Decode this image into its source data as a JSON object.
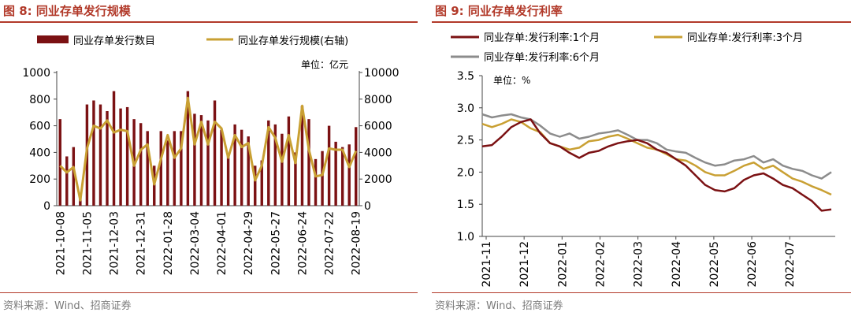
{
  "left": {
    "title": "图 8:  同业存单发行规模",
    "source": "资料来源：Wind、招商证券",
    "chart_data": {
      "type": "bar+line",
      "title": "同业存单发行规模",
      "unit_label": "单位：亿元",
      "left_axis": {
        "min": 0,
        "max": 1000,
        "ticks": [
          "0",
          "200",
          "400",
          "600",
          "800",
          "1000"
        ]
      },
      "right_axis": {
        "min": 0,
        "max": 10000,
        "ticks": [
          "0",
          "2000",
          "4000",
          "6000",
          "8000",
          "10000"
        ]
      },
      "x_tick_labels": [
        "2021-10-08",
        "2021-11-05",
        "2021-12-03",
        "2021-12-31",
        "2022-01-28",
        "2022-03-04",
        "2022-04-01",
        "2022-04-29",
        "2022-05-27",
        "2022-06-24",
        "2022-07-22",
        "2022-08-19"
      ],
      "x_tick_index": [
        0,
        4,
        8,
        12,
        16,
        20,
        24,
        28,
        32,
        36,
        40,
        44
      ],
      "series": [
        {
          "name": "同业存单发行数目",
          "axis": "left",
          "color": "#7b1113",
          "values": [
            650,
            370,
            440,
            80,
            760,
            790,
            760,
            710,
            860,
            730,
            740,
            650,
            620,
            560,
            300,
            560,
            490,
            560,
            560,
            860,
            690,
            680,
            640,
            790,
            570,
            380,
            610,
            570,
            520,
            300,
            340,
            640,
            610,
            540,
            670,
            400,
            750,
            650,
            350,
            410,
            600,
            480,
            440,
            460,
            590
          ]
        },
        {
          "name": "同业存单发行规模(右轴)",
          "axis": "right",
          "color": "#c9a033",
          "values": [
            3000,
            2500,
            2900,
            400,
            4300,
            6000,
            5800,
            6400,
            5500,
            5700,
            5600,
            3000,
            4200,
            4600,
            1600,
            3500,
            5300,
            3600,
            4300,
            8100,
            4600,
            6300,
            4600,
            6300,
            5800,
            3600,
            5300,
            4400,
            4700,
            1900,
            3000,
            5900,
            5100,
            3300,
            5300,
            3200,
            7500,
            4200,
            2200,
            2300,
            4300,
            4200,
            4200,
            2900,
            4100
          ]
        }
      ]
    }
  },
  "right": {
    "title": "图 9:  同业存单发行利率",
    "source": "资料来源：Wind、招商证券",
    "chart_data": {
      "type": "line",
      "title": "同业存单发行利率",
      "unit_label": "单位：%",
      "y_axis": {
        "min": 1.0,
        "max": 3.5,
        "ticks": [
          "1.0",
          "1.5",
          "2.0",
          "2.5",
          "3.0",
          "3.5"
        ]
      },
      "x_tick_labels": [
        "2021-11",
        "2021-12",
        "2022-01",
        "2022-02",
        "2022-03",
        "2022-04",
        "2022-05",
        "2022-06",
        "2022-07"
      ],
      "series": [
        {
          "name": "同业存单:发行利率:1个月",
          "color": "#7b1113",
          "values": [
            2.4,
            2.42,
            2.55,
            2.7,
            2.78,
            2.82,
            2.6,
            2.45,
            2.4,
            2.3,
            2.22,
            2.3,
            2.33,
            2.4,
            2.45,
            2.48,
            2.5,
            2.45,
            2.35,
            2.3,
            2.2,
            2.1,
            1.95,
            1.8,
            1.72,
            1.7,
            1.75,
            1.88,
            1.95,
            1.98,
            1.9,
            1.8,
            1.75,
            1.65,
            1.55,
            1.4,
            1.42
          ]
        },
        {
          "name": "同业存单:发行利率:3个月",
          "color": "#c9a033",
          "values": [
            2.75,
            2.7,
            2.75,
            2.82,
            2.78,
            2.68,
            2.62,
            2.45,
            2.4,
            2.35,
            2.38,
            2.48,
            2.5,
            2.55,
            2.58,
            2.52,
            2.45,
            2.38,
            2.35,
            2.28,
            2.2,
            2.18,
            2.1,
            2.0,
            1.95,
            1.95,
            2.02,
            2.1,
            2.15,
            2.05,
            2.1,
            2.0,
            1.9,
            1.85,
            1.78,
            1.72,
            1.65
          ]
        },
        {
          "name": "同业存单:发行利率:6个月",
          "color": "#8c8c8c",
          "values": [
            2.9,
            2.85,
            2.88,
            2.9,
            2.85,
            2.82,
            2.72,
            2.6,
            2.55,
            2.6,
            2.52,
            2.55,
            2.6,
            2.62,
            2.65,
            2.58,
            2.5,
            2.5,
            2.45,
            2.35,
            2.32,
            2.3,
            2.22,
            2.15,
            2.1,
            2.12,
            2.18,
            2.2,
            2.25,
            2.15,
            2.2,
            2.1,
            2.05,
            2.02,
            1.95,
            1.9,
            2.0
          ]
        }
      ]
    }
  }
}
